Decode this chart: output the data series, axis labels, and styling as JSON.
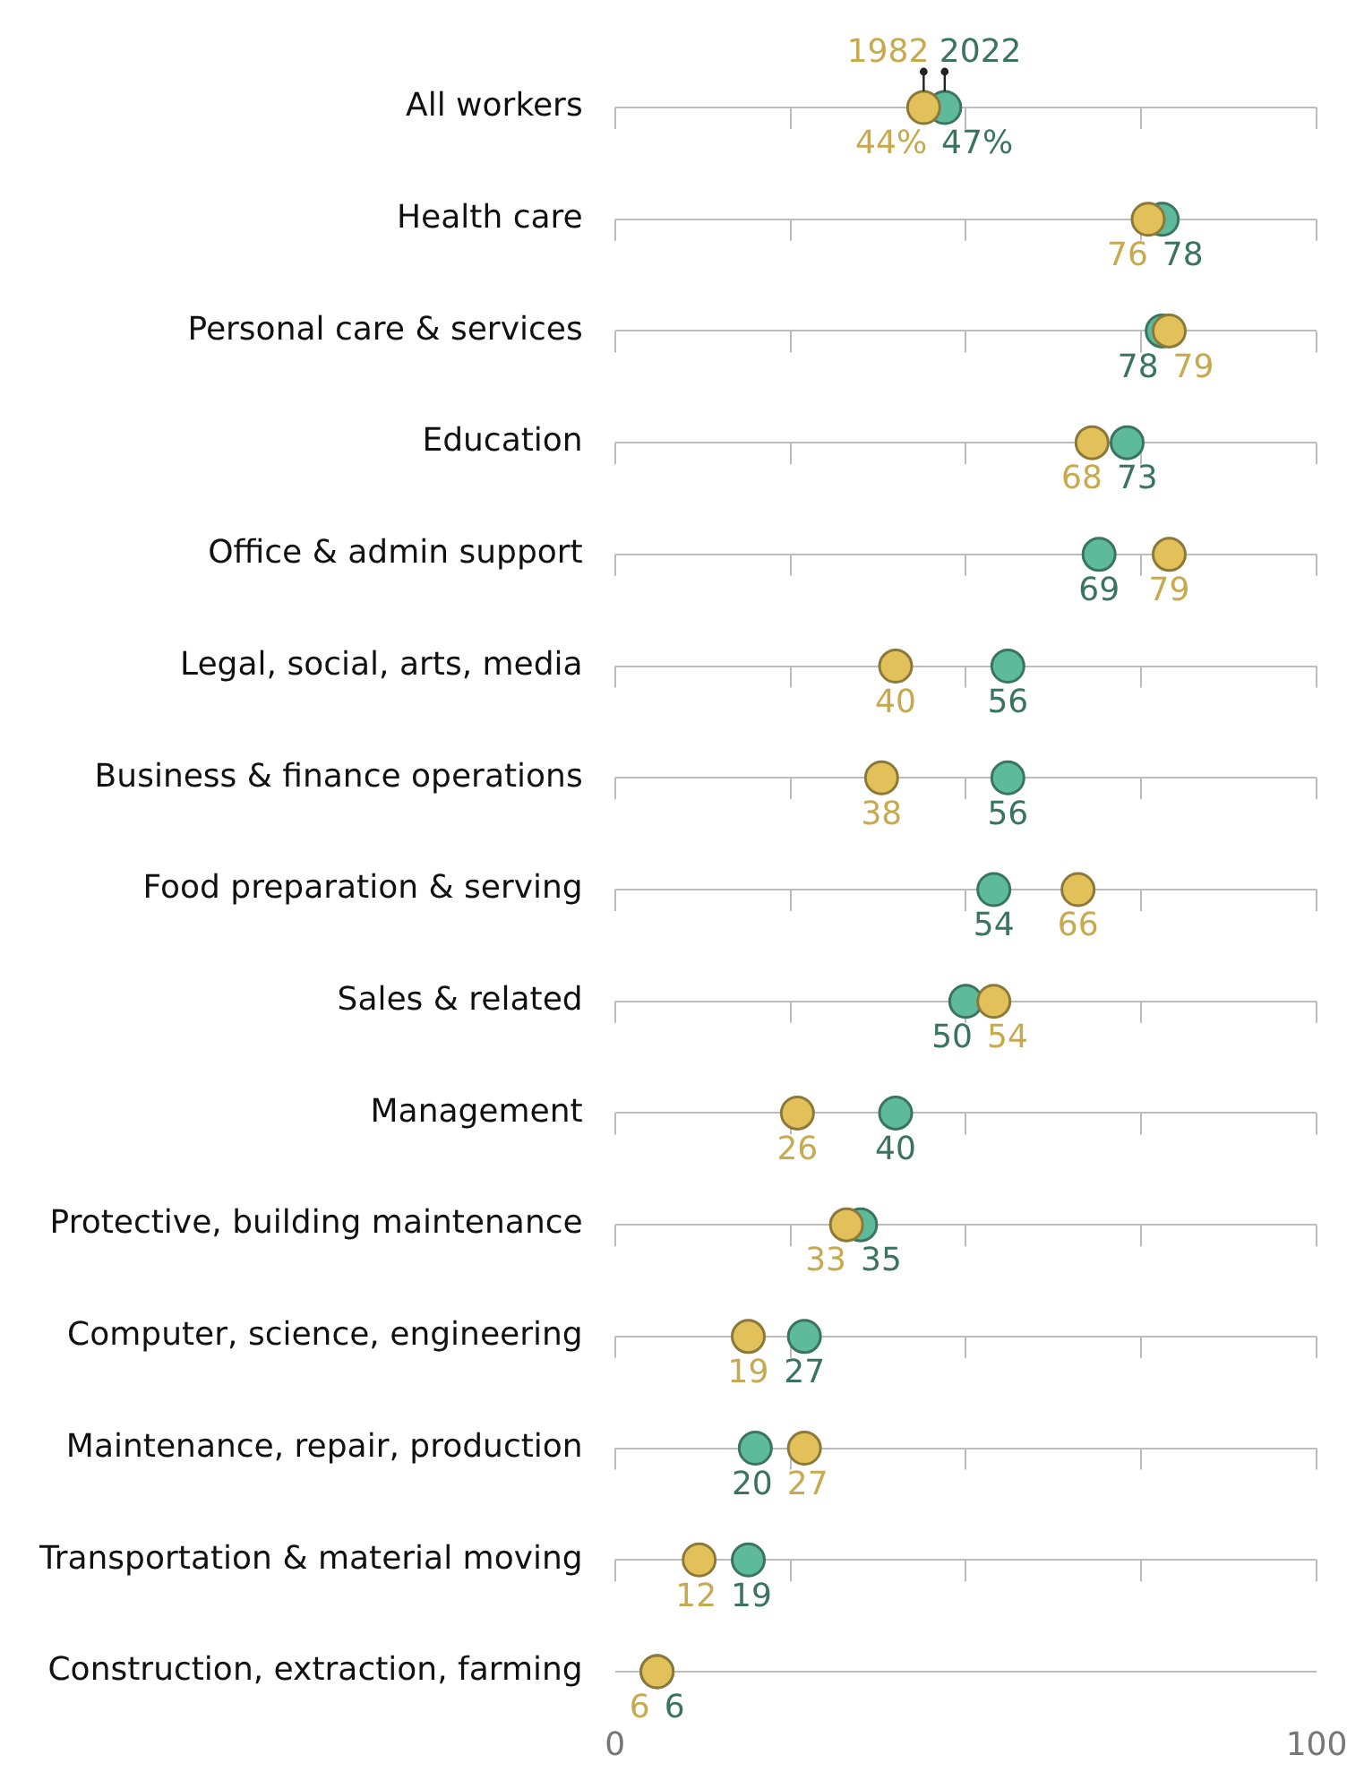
{
  "chart_data": {
    "type": "scatter",
    "orientation": "horizontal",
    "marker": "circle",
    "grid": true,
    "categories": [
      "All workers",
      "Health care",
      "Personal care & services",
      "Education",
      "Office & admin support",
      "Legal, social, arts, media",
      "Business & finance operations",
      "Food preparation & serving",
      "Sales & related",
      "Management",
      "Protective, building maintenance",
      "Computer, science, engineering",
      "Maintenance, repair, production",
      "Transportation & material moving",
      "Construction, extraction, farming"
    ],
    "xlim": [
      0,
      100
    ],
    "xticks": [
      0,
      {
        "value": 25,
        "label": null
      },
      {
        "value": 50,
        "label": null
      },
      {
        "value": 75,
        "label": null
      },
      100
    ],
    "series": [
      {
        "name": "1982",
        "color": "#e2c15a",
        "values": [
          44,
          76,
          79,
          68,
          79,
          40,
          38,
          66,
          54,
          26,
          33,
          19,
          27,
          12,
          6
        ],
        "value_labels": [
          "44%",
          "76",
          "79",
          "68",
          "79",
          "40",
          "38",
          "66",
          "54",
          "26",
          "33",
          "19",
          "27",
          "12",
          "6"
        ]
      },
      {
        "name": "2022",
        "color": "#5dbb9c",
        "values": [
          47,
          78,
          78,
          73,
          69,
          56,
          56,
          54,
          50,
          40,
          35,
          27,
          20,
          19,
          6
        ],
        "value_labels": [
          "47%",
          "78",
          "78",
          "73",
          "69",
          "56",
          "56",
          "54",
          "50",
          "40",
          "35",
          "27",
          "20",
          "19",
          "6"
        ]
      }
    ]
  }
}
